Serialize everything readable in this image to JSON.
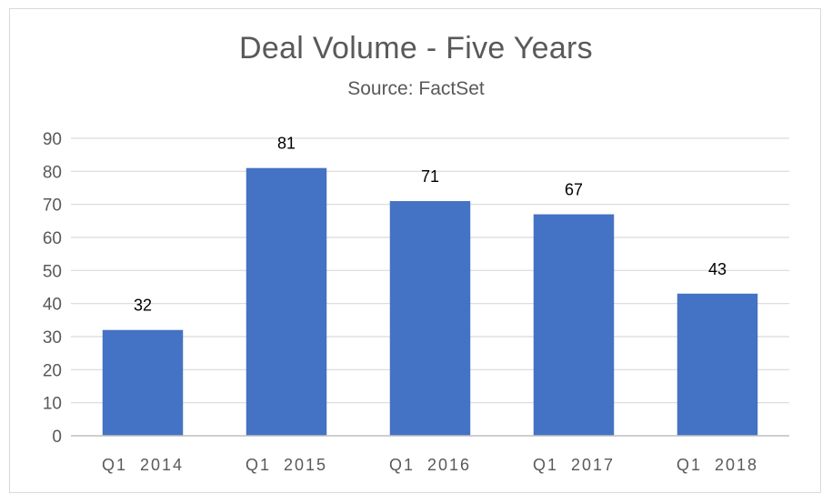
{
  "chart_data": {
    "type": "bar",
    "title": "Deal Volume - Five Years",
    "subtitle": "Source: FactSet",
    "xlabel": "",
    "ylabel": "",
    "categories": [
      "Q1  2014",
      "Q1  2015",
      "Q1  2016",
      "Q1  2017",
      "Q1  2018"
    ],
    "values": [
      32,
      81,
      71,
      67,
      43
    ],
    "data_labels": [
      "32",
      "81",
      "71",
      "67",
      "43"
    ],
    "ylim": [
      0,
      90
    ],
    "yticks": [
      0,
      10,
      20,
      30,
      40,
      50,
      60,
      70,
      80,
      90
    ],
    "ytick_labels": [
      "0",
      "10",
      "20",
      "30",
      "40",
      "50",
      "60",
      "70",
      "80",
      "90"
    ],
    "grid": true,
    "legend": "none",
    "bar_color": "#4472c4",
    "grid_color": "#d9d9d9",
    "axis_color": "#bfbfbf",
    "text_color": "#595959"
  }
}
